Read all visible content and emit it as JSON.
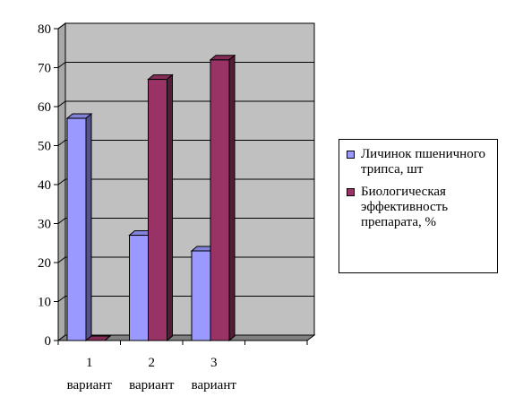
{
  "chart_data": {
    "type": "bar",
    "title": "",
    "xlabel": "",
    "ylabel": "",
    "categories": [
      [
        "1",
        "вариант"
      ],
      [
        "2",
        "вариант"
      ],
      [
        "3",
        "вариант"
      ],
      [
        "",
        ""
      ]
    ],
    "ylim": [
      0,
      80
    ],
    "yticks": [
      "0",
      "10",
      "20",
      "30",
      "40",
      "50",
      "60",
      "70",
      "80"
    ],
    "grid": true,
    "legend_position": "right",
    "series": [
      {
        "name": "Личинок пшеничного трипса, шт",
        "values": [
          57,
          27,
          23,
          null
        ],
        "color": "#9999ff"
      },
      {
        "name": "Биологическая эффективность препарата, %",
        "values": [
          0,
          67,
          72,
          null
        ],
        "color": "#993366"
      }
    ],
    "plot_background": "#c0c0c0"
  }
}
